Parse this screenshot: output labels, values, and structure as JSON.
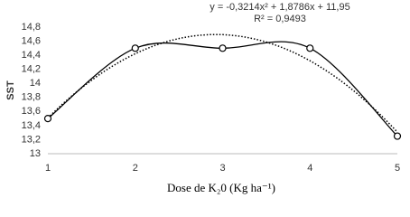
{
  "chart_data": {
    "type": "line",
    "annotations": [
      "y = -0,3214x² + 1,8786x + 11,95",
      "R² = 0,9493"
    ],
    "ylabel": "SST",
    "xlabel": "Dose de K₂0 (Kg ha⁻¹)",
    "x": [
      1,
      2,
      3,
      4,
      5
    ],
    "series": [
      {
        "color": "#000000",
        "values": [
          13.5,
          14.5,
          14.5,
          14.5,
          13.25
        ]
      }
    ],
    "xlim": [
      1,
      5
    ],
    "xticks": [
      1,
      2,
      3,
      4,
      5
    ],
    "ylim": [
      13,
      14.8
    ],
    "yticks": [
      13,
      {
        "value": 13.2,
        "label": "13,2"
      },
      {
        "value": 13.4,
        "label": "13,4"
      },
      {
        "value": 13.6,
        "label": "13,6"
      },
      {
        "value": 13.8,
        "label": "13,8"
      },
      14,
      {
        "value": 14.2,
        "label": "14,2"
      },
      {
        "value": 14.4,
        "label": "14,4"
      },
      {
        "value": 14.6,
        "label": "14,6"
      },
      {
        "value": 14.8,
        "label": "14,8"
      }
    ],
    "smooth": true,
    "trendline": "polynomial",
    "trendline_order": 2
  }
}
